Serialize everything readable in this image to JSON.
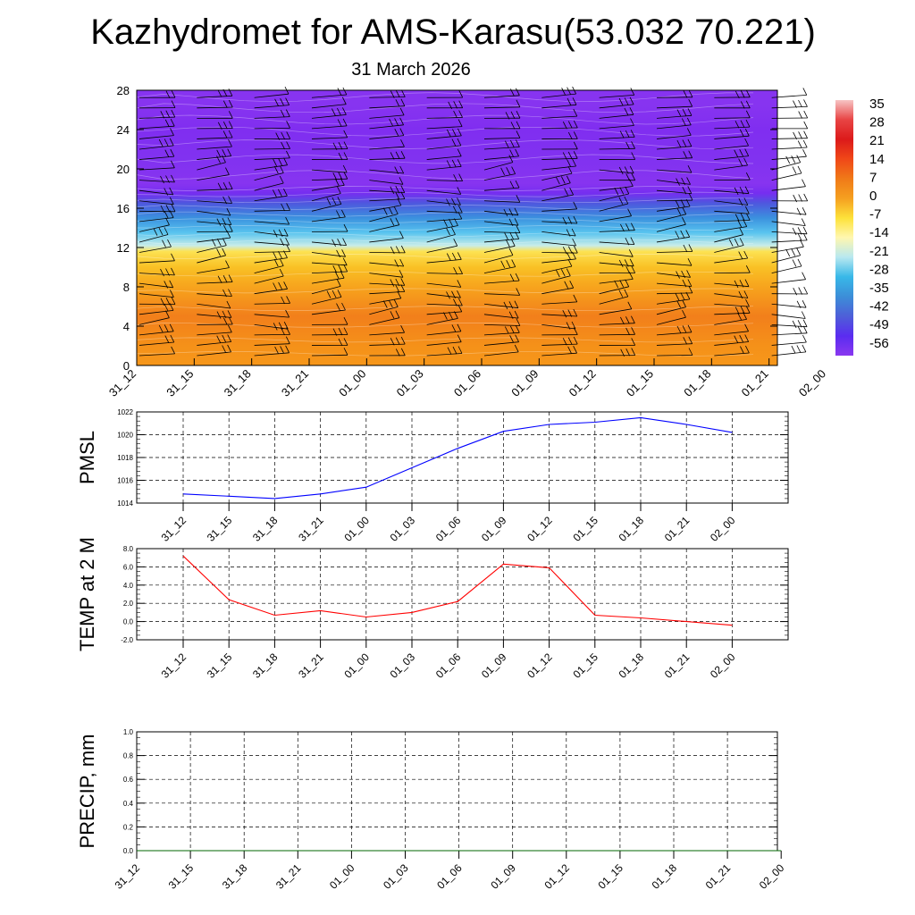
{
  "header": {
    "title": "Kazhydromet for AMS-Karasu(53.032 70.221)",
    "date": "31 March 2026"
  },
  "chart_data": [
    {
      "id": "cross-section",
      "type": "heatmap",
      "title": "",
      "xlabel": "",
      "ylabel": "",
      "x_categories": [
        "31_12",
        "31_15",
        "31_18",
        "31_21",
        "01_00",
        "01_03",
        "01_06",
        "01_09",
        "01_12",
        "01_15",
        "01_18",
        "01_21",
        "02_00"
      ],
      "ylim": [
        0,
        28
      ],
      "y_ticks": [
        0,
        4,
        8,
        12,
        16,
        20,
        24,
        28
      ],
      "temperature_profile": [
        {
          "level": 0,
          "value": 6
        },
        {
          "level": 2,
          "value": 7
        },
        {
          "level": 5,
          "value": 9
        },
        {
          "level": 8,
          "value": 4
        },
        {
          "level": 10,
          "value": -1
        },
        {
          "level": 11.6,
          "value": -6
        },
        {
          "level": 12.2,
          "value": -17
        },
        {
          "level": 13.5,
          "value": -25
        },
        {
          "level": 15,
          "value": -35
        },
        {
          "level": 16.5,
          "value": -44
        },
        {
          "level": 17.5,
          "value": -53
        },
        {
          "level": 18.5,
          "value": -56
        },
        {
          "level": 21,
          "value": -55
        },
        {
          "level": 24,
          "value": -58
        },
        {
          "level": 26.5,
          "value": -56
        },
        {
          "level": 28,
          "value": -56
        }
      ],
      "colorbar": {
        "labels": [
          "35",
          "28",
          "21",
          "14",
          "7",
          "0",
          "-7",
          "-14",
          "-21",
          "-28",
          "-35",
          "-42",
          "-49",
          "-56"
        ],
        "colors": [
          "#f7c4c4",
          "#e84444",
          "#dc1a1a",
          "#f04818",
          "#f07a18",
          "#f5a020",
          "#fde23a",
          "#fff7b0",
          "#b8e8f0",
          "#38b8e8",
          "#3c8ed8",
          "#4e5fd8",
          "#5a2cf0",
          "#8a38f0"
        ]
      }
    },
    {
      "id": "pmsl",
      "type": "line",
      "ylabel": "PMSL",
      "categories": [
        "31_12",
        "31_15",
        "31_18",
        "31_21",
        "01_00",
        "01_03",
        "01_06",
        "01_09",
        "01_12",
        "01_15",
        "01_18",
        "01_21",
        "02_00"
      ],
      "series": [
        {
          "name": "PMSL",
          "color": "#0000ff",
          "values": [
            1014.8,
            1014.6,
            1014.4,
            1014.8,
            1015.4,
            1017.1,
            1018.8,
            1020.3,
            1020.9,
            1021.1,
            1021.5,
            1020.9,
            1020.2
          ]
        }
      ],
      "ylim": [
        1014,
        1022
      ],
      "y_ticks": [
        "1014",
        "1016",
        "1018",
        "1020",
        "1022"
      ]
    },
    {
      "id": "temp2m",
      "type": "line",
      "ylabel": "TEMP at 2 M",
      "categories": [
        "31_12",
        "31_15",
        "31_18",
        "31_21",
        "01_00",
        "01_03",
        "01_06",
        "01_09",
        "01_12",
        "01_15",
        "01_18",
        "01_21",
        "02_00"
      ],
      "series": [
        {
          "name": "TEMP at 2 M",
          "color": "#ff0000",
          "values": [
            7.2,
            2.4,
            0.7,
            1.2,
            0.5,
            1.0,
            2.2,
            6.3,
            5.9,
            0.7,
            0.4,
            0.0,
            -0.4
          ]
        }
      ],
      "ylim": [
        -2,
        8
      ],
      "y_ticks": [
        "-2.0",
        "0.0",
        "2.0",
        "4.0",
        "6.0",
        "8.0"
      ]
    },
    {
      "id": "precip",
      "type": "line",
      "ylabel": "PRECIP, mm",
      "categories": [
        "31_12",
        "31_15",
        "31_18",
        "31_21",
        "01_00",
        "01_03",
        "01_06",
        "01_09",
        "01_12",
        "01_15",
        "01_18",
        "01_21",
        "02_00"
      ],
      "series": [
        {
          "name": "PRECIP",
          "color": "#006400",
          "values": [
            0,
            0,
            0,
            0,
            0,
            0,
            0,
            0,
            0,
            0,
            0,
            0,
            0
          ]
        }
      ],
      "ylim": [
        0,
        1
      ],
      "y_ticks": [
        "0.0",
        "0.2",
        "0.4",
        "0.6",
        "0.8",
        "1.0"
      ]
    }
  ]
}
